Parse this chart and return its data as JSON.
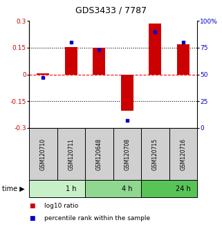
{
  "title": "GDS3433 / 7787",
  "samples": [
    "GSM120710",
    "GSM120711",
    "GSM120648",
    "GSM120708",
    "GSM120715",
    "GSM120716"
  ],
  "log10_ratio": [
    0.005,
    0.152,
    0.15,
    -0.205,
    0.285,
    0.17
  ],
  "percentile_rank": [
    47,
    80,
    73,
    7,
    90,
    80
  ],
  "time_groups": [
    {
      "label": "1 h",
      "start": 0,
      "end": 2,
      "color": "#c8f0c8"
    },
    {
      "label": "4 h",
      "start": 2,
      "end": 4,
      "color": "#90d890"
    },
    {
      "label": "24 h",
      "start": 4,
      "end": 6,
      "color": "#58c458"
    }
  ],
  "bar_color": "#cc0000",
  "point_color": "#0000cc",
  "ylim_left": [
    -0.3,
    0.3
  ],
  "ylim_right": [
    0,
    100
  ],
  "yticks_left": [
    0.3,
    0.15,
    0,
    -0.15,
    -0.3
  ],
  "yticks_right": [
    100,
    75,
    50,
    25,
    0
  ],
  "hline_values": [
    0.15,
    0,
    -0.15
  ],
  "hline_styles": [
    "dotted",
    "dashed",
    "dotted"
  ],
  "hline_colors": [
    "black",
    "red",
    "black"
  ],
  "legend_bar_label": "log10 ratio",
  "legend_point_label": "percentile rank within the sample",
  "sample_box_color": "#d0d0d0",
  "title_fontsize": 9,
  "tick_fontsize": 6.5,
  "sample_fontsize": 5.5,
  "time_fontsize": 7,
  "legend_fontsize": 6.5
}
